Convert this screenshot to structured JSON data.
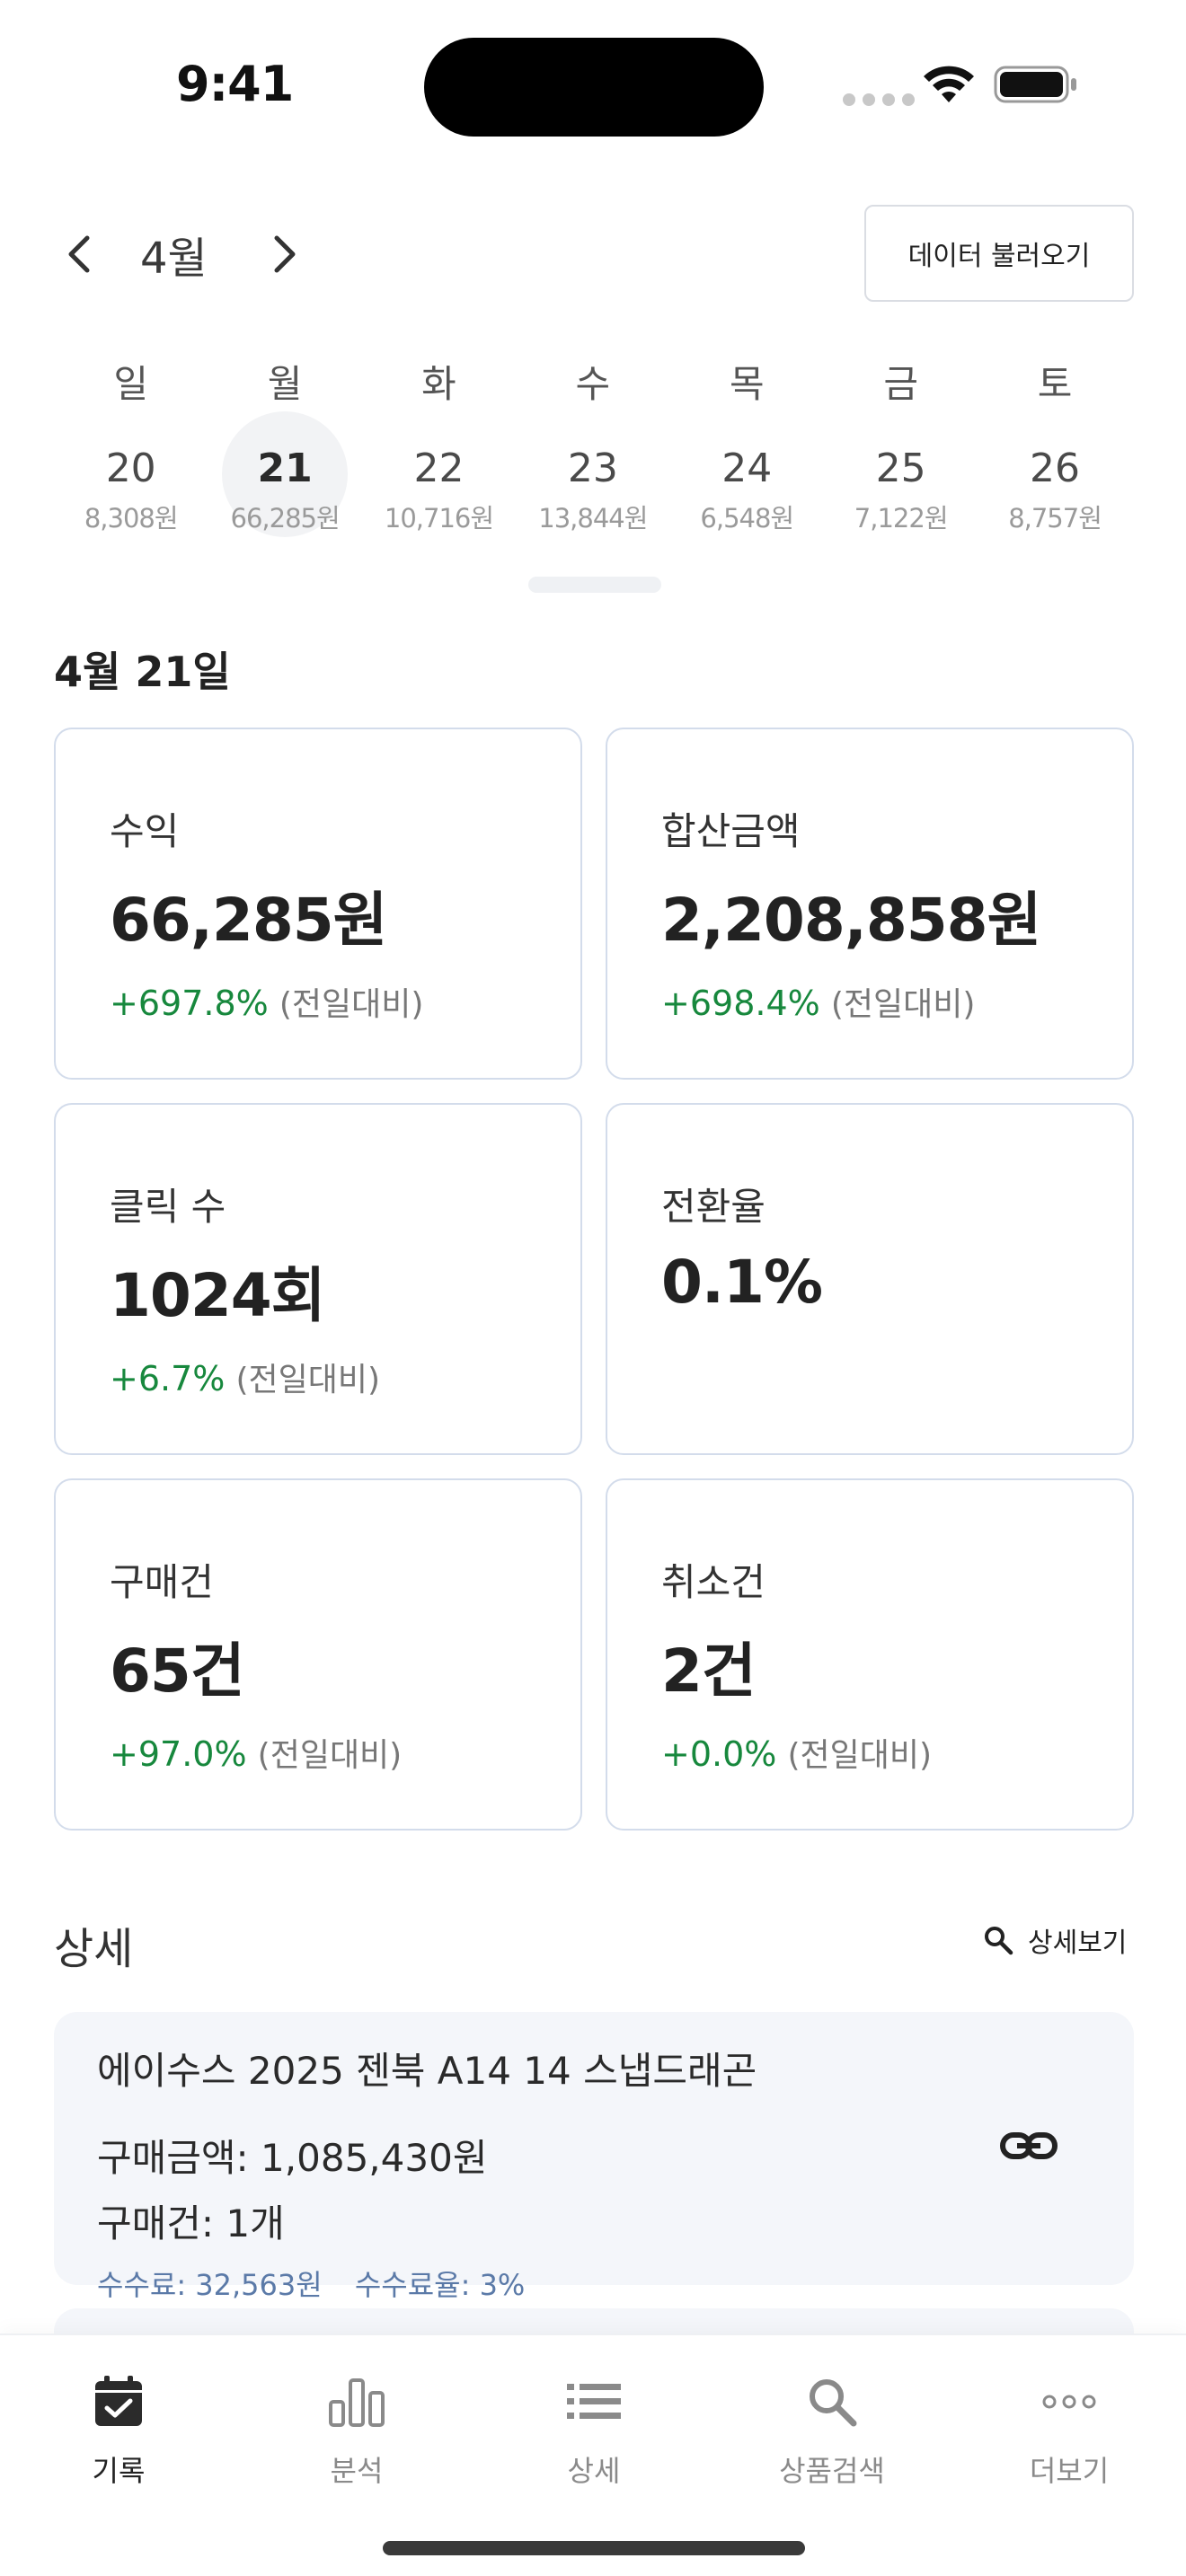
{
  "status_bar": {
    "time": "9:41"
  },
  "header": {
    "month": "4월",
    "load_button": "데이터 불러오기"
  },
  "week": [
    {
      "name": "일",
      "num": "20",
      "amount": "8,308원",
      "selected": false
    },
    {
      "name": "월",
      "num": "21",
      "amount": "66,285원",
      "selected": true
    },
    {
      "name": "화",
      "num": "22",
      "amount": "10,716원",
      "selected": false
    },
    {
      "name": "수",
      "num": "23",
      "amount": "13,844원",
      "selected": false
    },
    {
      "name": "목",
      "num": "24",
      "amount": "6,548원",
      "selected": false
    },
    {
      "name": "금",
      "num": "25",
      "amount": "7,122원",
      "selected": false
    },
    {
      "name": "토",
      "num": "26",
      "amount": "8,757원",
      "selected": false
    }
  ],
  "date_heading": "4월 21일",
  "cards": [
    {
      "label": "수익",
      "value": "66,285원",
      "change": "+697.8%",
      "note": "(전일대비)"
    },
    {
      "label": "합산금액",
      "value": "2,208,858원",
      "change": "+698.4%",
      "note": "(전일대비)"
    },
    {
      "label": "클릭 수",
      "value": "1024회",
      "change": "+6.7%",
      "note": "(전일대비)"
    },
    {
      "label": "전환율",
      "value": "0.1%",
      "change": "",
      "note": ""
    },
    {
      "label": "구매건",
      "value": "65건",
      "change": "+97.0%",
      "note": "(전일대비)"
    },
    {
      "label": "취소건",
      "value": "2건",
      "change": "+0.0%",
      "note": "(전일대비)"
    }
  ],
  "detail": {
    "title": "상세",
    "view_more": "상세보기",
    "items": [
      {
        "title": "에이수스 2025 젠북 A14 14 스냅드래곤",
        "amount": "구매금액: 1,085,430원",
        "count": "구매건: 1개",
        "fee": "수수료: 32,563원",
        "fee_rate": "수수료율: 3%"
      }
    ]
  },
  "tabbar": {
    "tabs": [
      {
        "label": "기록",
        "icon": "calendar-check-icon",
        "active": true
      },
      {
        "label": "분석",
        "icon": "bar-chart-icon",
        "active": false
      },
      {
        "label": "상세",
        "icon": "list-icon",
        "active": false
      },
      {
        "label": "상품검색",
        "icon": "search-icon",
        "active": false
      },
      {
        "label": "더보기",
        "icon": "more-dots-icon",
        "active": false
      }
    ]
  },
  "colors": {
    "positive": "#17883d",
    "card_border": "#d3dceb",
    "meta_text": "#5b7aa8",
    "item_bg": "#f4f6fa"
  }
}
